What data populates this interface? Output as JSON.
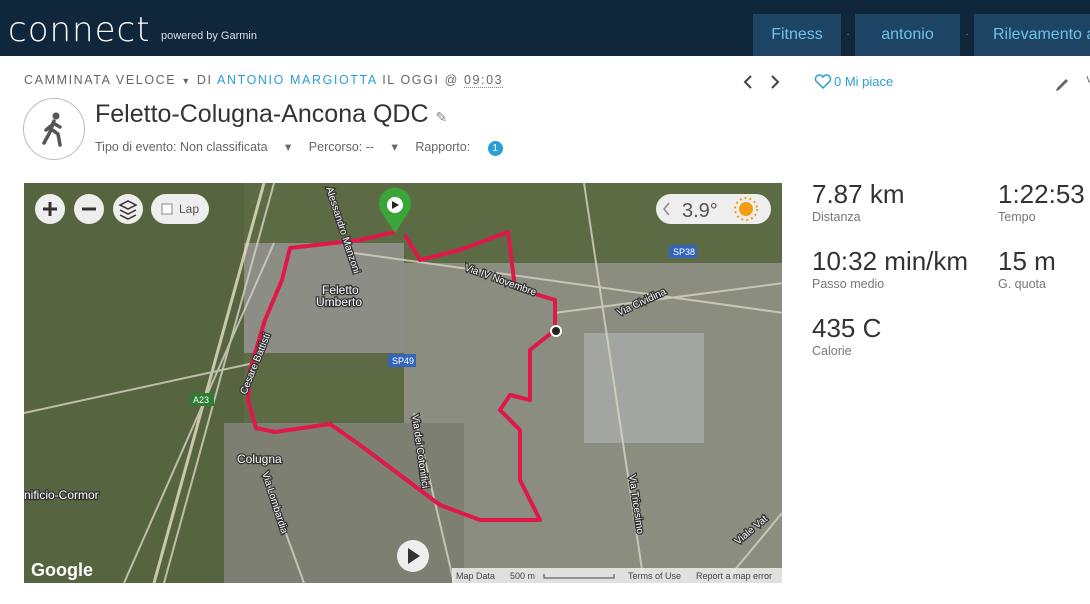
{
  "header": {
    "logo": "connect",
    "powered": "powered by Garmin",
    "nav": [
      "Fitness",
      "antonio",
      "Rilevamento a"
    ]
  },
  "activity": {
    "type": "CAMMINATA VELOCE",
    "by": "DI",
    "author": "ANTONIO MARGIOTTA",
    "at": "IL",
    "day": "OGGI",
    "sep": "@",
    "time": "09:03",
    "likes": "0 Mi piace",
    "title": "Feletto-Colugna-Ancona QDC",
    "event_type": "Tipo di evento: Non classificata",
    "course": "Percorso: --",
    "report": "Rapporto:",
    "report_count": "1"
  },
  "map": {
    "lap": "Lap",
    "temperature": "3.9°",
    "google": "Google",
    "map_data": "Map Data",
    "scale": "500 m",
    "terms": "Terms of Use",
    "report_error": "Report a map error",
    "places": [
      "Feletto",
      "Umberto",
      "Colugna",
      "Via IV Novembre",
      "Via Cividina",
      "Via dei Cotonifici",
      "Via Lombardia",
      "Via Tricesimo",
      "Viale Vat",
      "SP38",
      "SP49",
      "A23",
      "nificio-Cormor",
      "Cesare Battisti",
      "Alessandro Manzoni"
    ]
  },
  "stats": [
    {
      "value": "7.87 km",
      "label": "Distanza"
    },
    {
      "value": "1:22:53",
      "label": "Tempo"
    },
    {
      "value": "10:32 min/km",
      "label": "Passo medio"
    },
    {
      "value": "15 m",
      "label": "G. quota"
    },
    {
      "value": "435 C",
      "label": "Calorie"
    }
  ]
}
